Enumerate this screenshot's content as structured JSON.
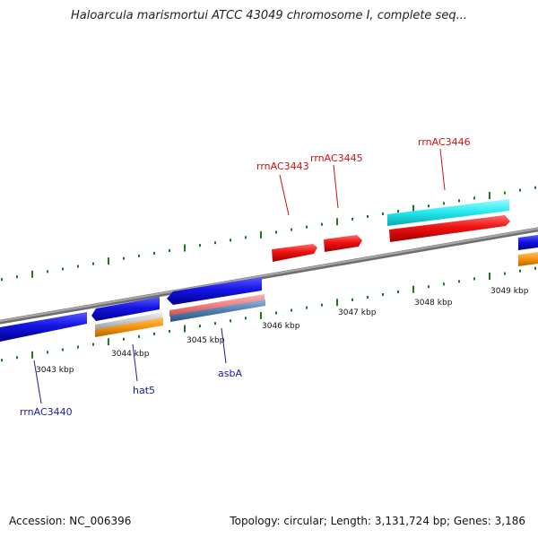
{
  "title": "Haloarcula marismortui ATCC 43049 chromosome I, complete seq...",
  "footer": {
    "accession": "Accession: NC_006396",
    "topology": "Topology: circular; Length: 3,131,724 bp; Genes: 3,186"
  },
  "colors": {
    "backbone": "#888888",
    "tick": "#1a7a1a",
    "blue": "#1414e6",
    "red": "#ee1111",
    "cyan": "#22e8ee",
    "orange": "#f5930d",
    "gray": "#c8c8c8",
    "salmon": "#f08080",
    "steel": "#4f7fb0",
    "label_blue": "#1a1aa8",
    "label_red": "#cc1111"
  },
  "scale_labels": [
    "3043 kbp",
    "3044 kbp",
    "3045 kbp",
    "3046 kbp",
    "3047 kbp",
    "3048 kbp",
    "3049 kbp"
  ],
  "gene_labels": {
    "rrnAC3440": "rrnAC3440",
    "hat5": "hat5",
    "asbA": "asbA",
    "rrnAC3443": "rrnAC3443",
    "rrnAC3445": "rrnAC3445",
    "rrnAC3446": "rrnAC3446"
  }
}
